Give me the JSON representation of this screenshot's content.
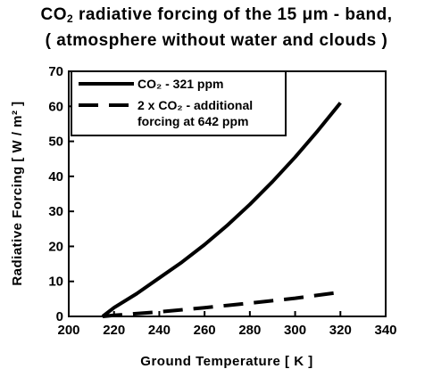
{
  "chart_data": {
    "type": "line",
    "title_line1": "CO₂ radiative forcing of the 15 μm - band,",
    "title_line1_pre": "CO",
    "title_line1_sub": "2",
    "title_line1_post": " radiative forcing of the 15 μm - band,",
    "title_line2": "( atmosphere without water and clouds )",
    "xlabel": "Ground  Temperature  [ K ]",
    "ylabel": "Radiative  Forcing  [ W / m² ]",
    "xlim": [
      200,
      340
    ],
    "ylim": [
      0,
      70
    ],
    "xticks": [
      200,
      220,
      240,
      260,
      280,
      300,
      320,
      340
    ],
    "yticks": [
      0,
      10,
      20,
      30,
      40,
      50,
      60,
      70
    ],
    "grid": false,
    "legend_position": "top-left",
    "series": [
      {
        "name": "CO₂ - 321 ppm",
        "legend_lines": [
          "CO₂ - 321 ppm"
        ],
        "style": "solid",
        "x": [
          215,
          220,
          230,
          240,
          250,
          260,
          270,
          280,
          290,
          300,
          310,
          320
        ],
        "y": [
          0,
          2.5,
          6.5,
          11,
          15.5,
          20.5,
          26,
          32,
          38.5,
          45.5,
          53,
          61
        ]
      },
      {
        "name": "2 x CO₂ - additional forcing at 642 ppm",
        "legend_lines": [
          "2 x CO₂ - additional",
          "forcing at 642 ppm"
        ],
        "style": "dashed",
        "x": [
          215,
          220,
          240,
          260,
          280,
          300,
          320
        ],
        "y": [
          0,
          0.3,
          1.3,
          2.5,
          3.8,
          5.2,
          6.9
        ]
      }
    ]
  }
}
